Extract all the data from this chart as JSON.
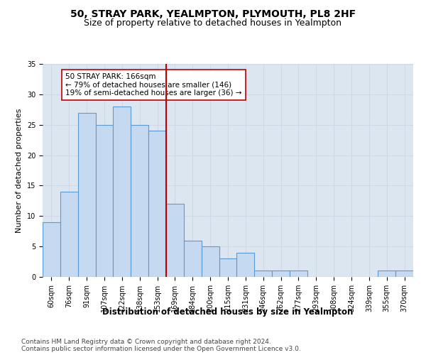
{
  "title1": "50, STRAY PARK, YEALMPTON, PLYMOUTH, PL8 2HF",
  "title2": "Size of property relative to detached houses in Yealmpton",
  "xlabel": "Distribution of detached houses by size in Yealmpton",
  "ylabel": "Number of detached properties",
  "categories": [
    "60sqm",
    "76sqm",
    "91sqm",
    "107sqm",
    "122sqm",
    "138sqm",
    "153sqm",
    "169sqm",
    "184sqm",
    "200sqm",
    "215sqm",
    "231sqm",
    "246sqm",
    "262sqm",
    "277sqm",
    "293sqm",
    "308sqm",
    "324sqm",
    "339sqm",
    "355sqm",
    "370sqm"
  ],
  "values": [
    9,
    14,
    27,
    25,
    28,
    25,
    24,
    12,
    6,
    5,
    3,
    4,
    1,
    1,
    1,
    0,
    0,
    0,
    0,
    1,
    1
  ],
  "bar_color": "#c5d9f0",
  "bar_edge_color": "#5b9bd5",
  "bar_edge_width": 0.8,
  "vline_x_index": 7,
  "vline_color": "#c00000",
  "annotation_text": "50 STRAY PARK: 166sqm\n← 79% of detached houses are smaller (146)\n19% of semi-detached houses are larger (36) →",
  "annotation_box_color": "#ffffff",
  "annotation_box_edge_color": "#c00000",
  "ylim": [
    0,
    35
  ],
  "yticks": [
    0,
    5,
    10,
    15,
    20,
    25,
    30,
    35
  ],
  "grid_color": "#d0d8e8",
  "plot_background_color": "#dce6f1",
  "footer1": "Contains HM Land Registry data © Crown copyright and database right 2024.",
  "footer2": "Contains public sector information licensed under the Open Government Licence v3.0.",
  "title1_fontsize": 10,
  "title2_fontsize": 9,
  "xlabel_fontsize": 8.5,
  "ylabel_fontsize": 8,
  "tick_fontsize": 7,
  "annotation_fontsize": 7.5,
  "footer_fontsize": 6.5
}
